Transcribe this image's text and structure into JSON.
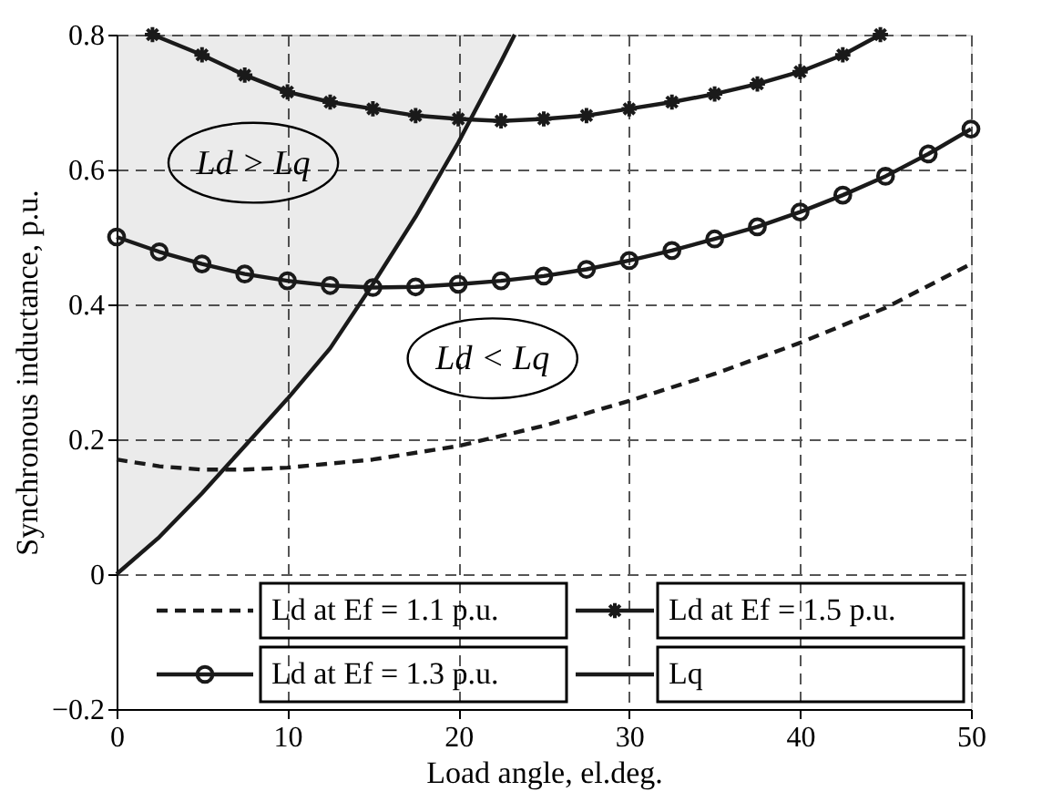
{
  "chart_data": {
    "type": "line",
    "xlabel": "Load angle, el.deg.",
    "ylabel": "Synchronous inductance, p.u.",
    "xlim": [
      0,
      50
    ],
    "xticks": [
      0,
      10,
      20,
      30,
      40,
      50
    ],
    "ylim": [
      -0.2,
      0.8
    ],
    "yticks": [
      -0.2,
      0,
      0.2,
      0.4,
      0.6,
      0.8
    ],
    "grid": true,
    "legend": "bottom",
    "series": [
      {
        "name": "Ld at Ef = 1.1 p.u.",
        "color": "#1a1a1a",
        "line_style": "dashed",
        "marker": "none",
        "x": [
          0,
          2.5,
          5,
          7.5,
          10,
          15,
          20,
          25,
          30,
          35,
          40,
          45,
          50
        ],
        "values": [
          0.17,
          0.16,
          0.155,
          0.155,
          0.158,
          0.17,
          0.19,
          0.22,
          0.257,
          0.297,
          0.343,
          0.395,
          0.46
        ]
      },
      {
        "name": "Ld at Ef = 1.5 p.u.",
        "color": "#1a1a1a",
        "line_style": "solid",
        "marker": "cross",
        "x": [
          2.1,
          5,
          7.5,
          10,
          12.5,
          15,
          17.5,
          20,
          22.5,
          25,
          27.5,
          30,
          32.5,
          35,
          37.5,
          40,
          42.5,
          44.7
        ],
        "values": [
          0.8,
          0.77,
          0.74,
          0.715,
          0.7,
          0.69,
          0.68,
          0.675,
          0.672,
          0.675,
          0.68,
          0.69,
          0.7,
          0.712,
          0.727,
          0.745,
          0.77,
          0.8
        ]
      },
      {
        "name": "Ld at Ef = 1.3 p.u.",
        "color": "#1a1a1a",
        "line_style": "solid",
        "marker": "circle",
        "x": [
          0,
          2.5,
          5,
          7.5,
          10,
          12.5,
          15,
          17.5,
          20,
          22.5,
          25,
          27.5,
          30,
          32.5,
          35,
          37.5,
          40,
          42.5,
          45,
          47.5,
          50
        ],
        "values": [
          0.5,
          0.478,
          0.46,
          0.445,
          0.435,
          0.428,
          0.425,
          0.426,
          0.43,
          0.435,
          0.442,
          0.452,
          0.465,
          0.48,
          0.497,
          0.515,
          0.537,
          0.562,
          0.59,
          0.623,
          0.66
        ]
      },
      {
        "name": "Lq",
        "color": "#1a1a1a",
        "line_style": "solid",
        "marker": "none",
        "x": [
          0,
          2.5,
          5,
          7.5,
          10,
          12.5,
          15,
          17.5,
          20,
          22.5,
          23.3
        ],
        "values": [
          0,
          0.055,
          0.12,
          0.19,
          0.26,
          0.335,
          0.43,
          0.53,
          0.64,
          0.76,
          0.8
        ],
        "lower": [
          0,
          0.055,
          0.12,
          0.19,
          0.26,
          0.335,
          0.43,
          0.53,
          0.64,
          0.76,
          0.8
        ],
        "upper": [
          0.8,
          0.8,
          0.8,
          0.8,
          0.8,
          0.8,
          0.8,
          0.8,
          0.8,
          0.8,
          0.8
        ]
      }
    ],
    "annotations": [
      "Ld > Lq",
      "Ld < Lq"
    ]
  }
}
